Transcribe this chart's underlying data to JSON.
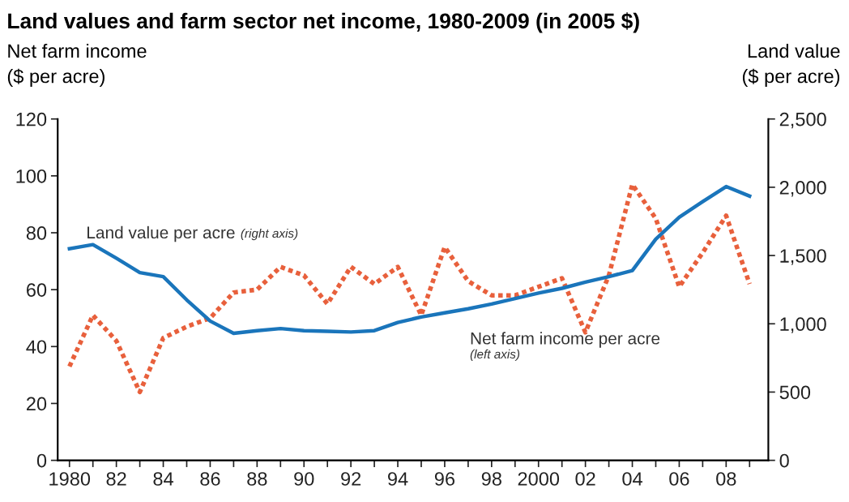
{
  "chart_data": {
    "type": "line",
    "title": "Land values and farm sector net income, 1980-2009 (in 2005 $)",
    "ylabel": "Net farm income\n($ per acre)",
    "y2label": "Land value\n($ per acre)",
    "x": [
      1980,
      1981,
      1982,
      1983,
      1984,
      1985,
      1986,
      1987,
      1988,
      1989,
      1990,
      1991,
      1992,
      1993,
      1994,
      1995,
      1996,
      1997,
      1998,
      1999,
      2000,
      2001,
      2002,
      2003,
      2004,
      2005,
      2006,
      2007,
      2008,
      2009
    ],
    "series": [
      {
        "name": "Net farm income per acre\n(left axis)",
        "axis": "y",
        "color": "#e8603c",
        "line_style": "dotted",
        "values": [
          33,
          51,
          42,
          24,
          43,
          47,
          50,
          59,
          60,
          68,
          65,
          55,
          68,
          62,
          68,
          51,
          75,
          63,
          58,
          58,
          61,
          64,
          45,
          65,
          97,
          85,
          61,
          73,
          86,
          62
        ]
      },
      {
        "name": "Land value per acre (right axis)",
        "axis": "y2",
        "color": "#1a75bb",
        "line_style": "solid",
        "values": [
          1550,
          1580,
          1480,
          1375,
          1345,
          1175,
          1020,
          930,
          950,
          965,
          950,
          945,
          940,
          950,
          1010,
          1050,
          1080,
          1110,
          1145,
          1185,
          1225,
          1260,
          1305,
          1345,
          1390,
          1620,
          1780,
          1895,
          2005,
          1935
        ]
      }
    ],
    "xlim": [
      1979.5,
      2009.8
    ],
    "xticks": [
      {
        "value": 1980,
        "label": "1980"
      },
      {
        "value": 1981,
        "label": null
      },
      {
        "value": 1982,
        "label": "82"
      },
      {
        "value": 1983,
        "label": null
      },
      {
        "value": 1984,
        "label": "84"
      },
      {
        "value": 1985,
        "label": null
      },
      {
        "value": 1986,
        "label": "86"
      },
      {
        "value": 1987,
        "label": null
      },
      {
        "value": 1988,
        "label": "88"
      },
      {
        "value": 1989,
        "label": null
      },
      {
        "value": 1990,
        "label": "90"
      },
      {
        "value": 1991,
        "label": null
      },
      {
        "value": 1992,
        "label": "92"
      },
      {
        "value": 1993,
        "label": null
      },
      {
        "value": 1994,
        "label": "94"
      },
      {
        "value": 1995,
        "label": null
      },
      {
        "value": 1996,
        "label": "96"
      },
      {
        "value": 1997,
        "label": null
      },
      {
        "value": 1998,
        "label": "98"
      },
      {
        "value": 1999,
        "label": null
      },
      {
        "value": 2000,
        "label": "2000"
      },
      {
        "value": 2001,
        "label": null
      },
      {
        "value": 2002,
        "label": "02"
      },
      {
        "value": 2003,
        "label": null
      },
      {
        "value": 2004,
        "label": "04"
      },
      {
        "value": 2005,
        "label": null
      },
      {
        "value": 2006,
        "label": "06"
      },
      {
        "value": 2007,
        "label": null
      },
      {
        "value": 2008,
        "label": "08"
      },
      {
        "value": 2009,
        "label": null
      }
    ],
    "ylim": [
      0,
      120
    ],
    "yticks": [
      0,
      20,
      40,
      60,
      80,
      100,
      120
    ],
    "y2lim": [
      0,
      2500
    ],
    "y2ticks": [
      0,
      {
        "value": 500,
        "label": "500"
      },
      {
        "value": 1000,
        "label": "1,000"
      },
      {
        "value": 1500,
        "label": "1,500"
      },
      {
        "value": 2000,
        "label": "2,000"
      },
      {
        "value": 2500,
        "label": "2,500"
      }
    ],
    "grid": false,
    "legend": false
  }
}
